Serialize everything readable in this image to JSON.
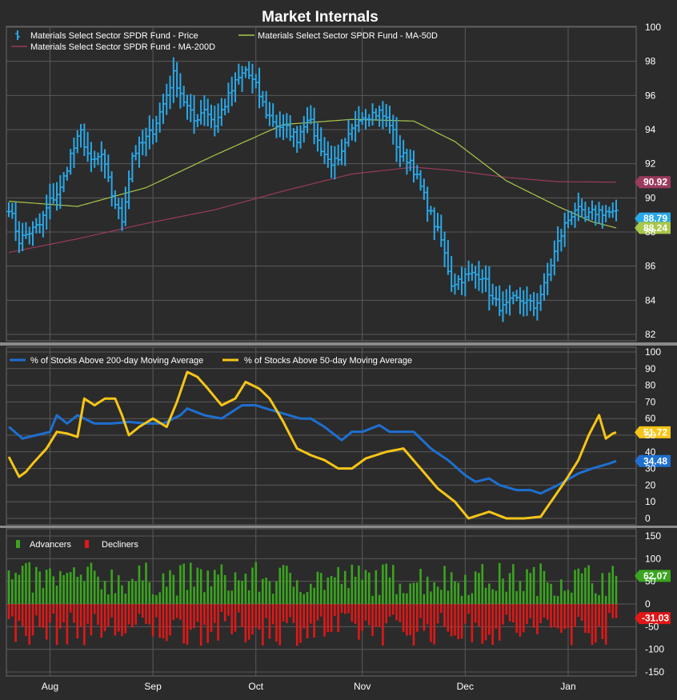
{
  "title": "Market Internals",
  "colors": {
    "background": "#2b2b2b",
    "grid": "#5a5a5a",
    "price": "#29a8e8",
    "ma50": "#a8c84a",
    "ma200": "#9b3a5e",
    "pct200": "#1e6fd0",
    "pct50": "#f5c518",
    "advancers": "#3aa51f",
    "decliners": "#e01818"
  },
  "chart_data": [
    {
      "type": "line",
      "panel": "price",
      "legend": [
        {
          "name": "Materials Select Sector SPDR Fund - Price",
          "color": "#29a8e8",
          "marker": "ohlc"
        },
        {
          "name": "Materials Select Sector SPDR Fund - MA-50D",
          "color": "#a8c84a",
          "marker": "line"
        },
        {
          "name": "Materials Select Sector SPDR Fund - MA-200D",
          "color": "#9b3a5e",
          "marker": "line"
        }
      ],
      "yticks": [
        82,
        84,
        86,
        88,
        90,
        92,
        94,
        96,
        98,
        100
      ],
      "ylim": [
        82,
        100
      ],
      "price_anchors": [
        [
          0,
          89.5
        ],
        [
          3,
          87.5
        ],
        [
          6,
          88.0
        ],
        [
          9,
          88.4
        ],
        [
          12,
          89.8
        ],
        [
          15,
          90.5
        ],
        [
          18,
          92.5
        ],
        [
          21,
          93.8
        ],
        [
          24,
          92.0
        ],
        [
          27,
          92.5
        ],
        [
          30,
          90.2
        ],
        [
          33,
          88.7
        ],
        [
          36,
          92.5
        ],
        [
          39,
          93.2
        ],
        [
          42,
          94.0
        ],
        [
          45,
          95.5
        ],
        [
          48,
          97.2
        ],
        [
          51,
          95.7
        ],
        [
          54,
          94.5
        ],
        [
          57,
          95.3
        ],
        [
          60,
          94.3
        ],
        [
          63,
          95.5
        ],
        [
          66,
          96.7
        ],
        [
          69,
          97.5
        ],
        [
          72,
          96.5
        ],
        [
          75,
          95.0
        ],
        [
          78,
          94.3
        ],
        [
          81,
          94.0
        ],
        [
          84,
          93.5
        ],
        [
          87,
          94.8
        ],
        [
          90,
          93.3
        ],
        [
          93,
          92.2
        ],
        [
          96,
          92.0
        ],
        [
          99,
          93.5
        ],
        [
          102,
          94.8
        ],
        [
          105,
          94.9
        ],
        [
          108,
          95.0
        ],
        [
          111,
          94.4
        ],
        [
          114,
          92.5
        ],
        [
          117,
          92.2
        ],
        [
          120,
          90.6
        ],
        [
          123,
          89.0
        ],
        [
          126,
          87.5
        ],
        [
          129,
          85.0
        ],
        [
          132,
          85.3
        ],
        [
          135,
          85.5
        ],
        [
          138,
          85.5
        ],
        [
          141,
          84.0
        ],
        [
          144,
          83.5
        ],
        [
          147,
          84.0
        ],
        [
          150,
          84.0
        ],
        [
          153,
          83.6
        ],
        [
          156,
          84.8
        ],
        [
          159,
          86.8
        ],
        [
          162,
          88.4
        ],
        [
          165,
          89.4
        ],
        [
          168,
          88.8
        ],
        [
          171,
          89.2
        ],
        [
          174,
          89.2
        ],
        [
          177,
          89.0
        ]
      ],
      "ma50_anchors": [
        [
          0,
          89.8
        ],
        [
          20,
          89.5
        ],
        [
          40,
          90.6
        ],
        [
          60,
          92.5
        ],
        [
          80,
          94.3
        ],
        [
          100,
          94.6
        ],
        [
          118,
          94.5
        ],
        [
          130,
          93.3
        ],
        [
          145,
          91.0
        ],
        [
          160,
          89.5
        ],
        [
          170,
          88.6
        ],
        [
          177,
          88.24
        ]
      ],
      "ma200_anchors": [
        [
          0,
          86.8
        ],
        [
          20,
          87.6
        ],
        [
          40,
          88.5
        ],
        [
          60,
          89.3
        ],
        [
          80,
          90.4
        ],
        [
          100,
          91.4
        ],
        [
          118,
          91.8
        ],
        [
          130,
          91.6
        ],
        [
          145,
          91.2
        ],
        [
          160,
          90.95
        ],
        [
          177,
          90.92
        ]
      ],
      "last_values": [
        {
          "label": "90.92",
          "value": 90.92,
          "color": "#9b3a5e"
        },
        {
          "label": "88.79",
          "value": 88.79,
          "color": "#29a8e8"
        },
        {
          "label": "88.24",
          "value": 88.24,
          "color": "#a8c84a"
        }
      ]
    },
    {
      "type": "line",
      "panel": "breadth",
      "legend": [
        {
          "name": "% of Stocks Above 200-day Moving Average",
          "color": "#1e6fd0"
        },
        {
          "name": "% of Stocks Above 50-day Moving Average",
          "color": "#f5c518"
        }
      ],
      "yticks": [
        0,
        10,
        20,
        30,
        40,
        50,
        60,
        70,
        80,
        90,
        100
      ],
      "ylim": [
        0,
        100
      ],
      "pct200_anchors": [
        [
          0,
          55
        ],
        [
          4,
          48
        ],
        [
          8,
          50
        ],
        [
          12,
          52
        ],
        [
          14,
          62
        ],
        [
          17,
          57
        ],
        [
          20,
          62
        ],
        [
          25,
          57
        ],
        [
          30,
          57
        ],
        [
          35,
          58
        ],
        [
          40,
          57
        ],
        [
          45,
          57
        ],
        [
          50,
          62
        ],
        [
          52,
          66
        ],
        [
          57,
          62
        ],
        [
          62,
          60
        ],
        [
          68,
          68
        ],
        [
          72,
          68
        ],
        [
          75,
          66
        ],
        [
          80,
          63
        ],
        [
          85,
          60
        ],
        [
          88,
          60
        ],
        [
          92,
          55
        ],
        [
          97,
          47
        ],
        [
          100,
          52
        ],
        [
          103,
          52
        ],
        [
          108,
          56
        ],
        [
          111,
          52
        ],
        [
          118,
          52
        ],
        [
          123,
          42
        ],
        [
          128,
          35
        ],
        [
          133,
          26
        ],
        [
          136,
          22
        ],
        [
          140,
          24
        ],
        [
          143,
          20
        ],
        [
          148,
          17
        ],
        [
          152,
          17
        ],
        [
          155,
          15
        ],
        [
          160,
          20
        ],
        [
          166,
          27
        ],
        [
          170,
          30
        ],
        [
          175,
          33
        ],
        [
          177,
          34.48
        ]
      ],
      "pct50_anchors": [
        [
          0,
          37
        ],
        [
          3,
          25
        ],
        [
          5,
          28
        ],
        [
          7,
          33
        ],
        [
          11,
          42
        ],
        [
          14,
          52
        ],
        [
          17,
          51
        ],
        [
          20,
          49
        ],
        [
          22,
          72
        ],
        [
          25,
          68
        ],
        [
          28,
          72
        ],
        [
          31,
          72
        ],
        [
          33,
          62
        ],
        [
          35,
          50
        ],
        [
          38,
          55
        ],
        [
          42,
          60
        ],
        [
          46,
          55
        ],
        [
          49,
          70
        ],
        [
          52,
          88
        ],
        [
          55,
          85
        ],
        [
          58,
          78
        ],
        [
          62,
          68
        ],
        [
          66,
          72
        ],
        [
          69,
          82
        ],
        [
          73,
          78
        ],
        [
          76,
          72
        ],
        [
          80,
          58
        ],
        [
          84,
          42
        ],
        [
          88,
          38
        ],
        [
          92,
          35
        ],
        [
          96,
          30
        ],
        [
          100,
          30
        ],
        [
          104,
          36
        ],
        [
          110,
          40
        ],
        [
          115,
          42
        ],
        [
          120,
          30
        ],
        [
          125,
          18
        ],
        [
          130,
          10
        ],
        [
          134,
          0
        ],
        [
          140,
          4
        ],
        [
          145,
          0
        ],
        [
          150,
          0
        ],
        [
          155,
          1
        ],
        [
          158,
          10
        ],
        [
          162,
          22
        ],
        [
          166,
          35
        ],
        [
          169,
          50
        ],
        [
          172,
          62
        ],
        [
          174,
          48
        ],
        [
          176,
          51
        ],
        [
          177,
          51.72
        ]
      ],
      "last_values": [
        {
          "label": "51.72",
          "value": 51.72,
          "color": "#f5c518"
        },
        {
          "label": "34.48",
          "value": 34.48,
          "color": "#1e6fd0"
        }
      ]
    },
    {
      "type": "bar",
      "panel": "advdec",
      "legend": [
        {
          "name": "Advancers",
          "color": "#3aa51f"
        },
        {
          "name": "Decliners",
          "color": "#e01818"
        }
      ],
      "yticks": [
        -150,
        -100,
        -50,
        0,
        50,
        100,
        150
      ],
      "ylim": [
        -150,
        150
      ],
      "advancers_base": 55,
      "decliners_base": -55,
      "bar_count": 178,
      "last_values": [
        {
          "label": "62.07",
          "value": 62.07,
          "color": "#3aa51f"
        },
        {
          "label": "-31.03",
          "value": -31.03,
          "color": "#e01818"
        }
      ]
    }
  ],
  "x_axis": {
    "months": [
      {
        "label": "Aug",
        "index": 12
      },
      {
        "label": "Sep",
        "index": 42
      },
      {
        "label": "Oct",
        "index": 72
      },
      {
        "label": "Nov",
        "index": 103
      },
      {
        "label": "Dec",
        "index": 133
      },
      {
        "label": "Jan",
        "index": 163
      }
    ]
  }
}
